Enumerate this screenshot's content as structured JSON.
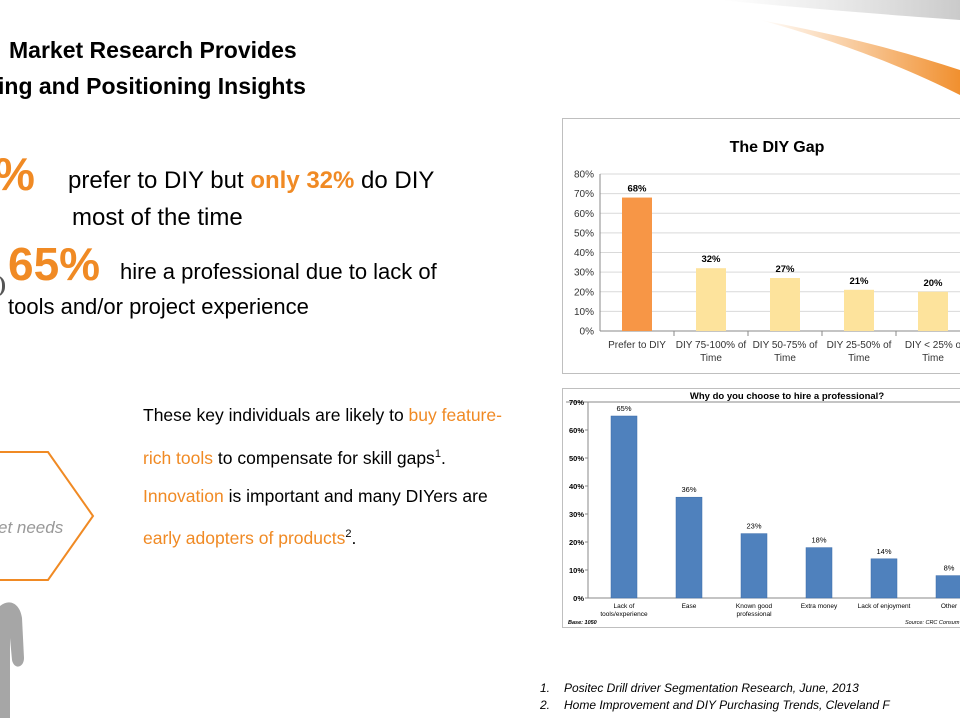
{
  "slide": {
    "title_line1": "Market Research Provides",
    "title_line2": "ing and Positioning Insights",
    "stat1_big": "%",
    "stat1_text_a": "prefer to DIY but ",
    "stat1_highlight": "only 32%",
    "stat1_text_b": " do DIY",
    "stat1_text_c": "most of the time",
    "stat2_big": "65%",
    "stat2_text_a": "hire a professional due to lack of",
    "stat2_text_b": "tools and/or project experience",
    "hexagon_label": "et needs",
    "para": {
      "p1": "These key individuals are likely to ",
      "p2": "buy feature-rich tools",
      "p3": " to compensate for skill gaps",
      "sup1": "1",
      "p4": ". ",
      "p5": "Innovation",
      "p6": " is important and many DIYers are ",
      "p7": "early adopters of products",
      "sup2": "2",
      "p8": "."
    },
    "footnotes": [
      {
        "num": "1.",
        "text": "Positec Drill driver Segmentation Research, June, 2013"
      },
      {
        "num": "2.",
        "text": "Home Improvement and DIY Purchasing Trends, Cleveland F"
      }
    ]
  },
  "colors": {
    "accent": "#f08a24",
    "bar_orange": "#f79646",
    "bar_light": "#fde39c",
    "bar_blue": "#4f81bd"
  },
  "chart_data": [
    {
      "type": "bar",
      "title": "The DIY Gap",
      "categories": [
        [
          "Prefer to DIY"
        ],
        [
          "DIY 75-100% of",
          "Time"
        ],
        [
          "DIY 50-75% of",
          "Time"
        ],
        [
          "DIY 25-50% of",
          "Time"
        ],
        [
          "DIY < 25% o",
          "Time"
        ]
      ],
      "values": [
        68,
        32,
        27,
        21,
        20
      ],
      "data_labels": [
        "68%",
        "32%",
        "27%",
        "21%",
        "20%"
      ],
      "yticks": [
        "0%",
        "10%",
        "20%",
        "30%",
        "40%",
        "50%",
        "60%",
        "70%",
        "80%"
      ],
      "ylim": [
        0,
        80
      ],
      "grid": true,
      "xlabel": "",
      "ylabel": ""
    },
    {
      "type": "bar",
      "title": "Why do you choose to hire a professional?",
      "categories": [
        [
          "Lack of",
          "tools/experience"
        ],
        [
          "Ease"
        ],
        [
          "Known good",
          "professional"
        ],
        [
          "Extra money"
        ],
        [
          "Lack of enjoyment"
        ],
        [
          "Other"
        ]
      ],
      "values": [
        65,
        36,
        23,
        18,
        14,
        8
      ],
      "data_labels": [
        "65%",
        "36%",
        "23%",
        "18%",
        "14%",
        "8%"
      ],
      "yticks": [
        "0%",
        "10%",
        "20%",
        "30%",
        "40%",
        "50%",
        "60%",
        "70%"
      ],
      "ylim": [
        0,
        70
      ],
      "grid": false,
      "base_note": "Base: 1050",
      "source_note": "Source: CRC Consum",
      "xlabel": "",
      "ylabel": ""
    }
  ]
}
